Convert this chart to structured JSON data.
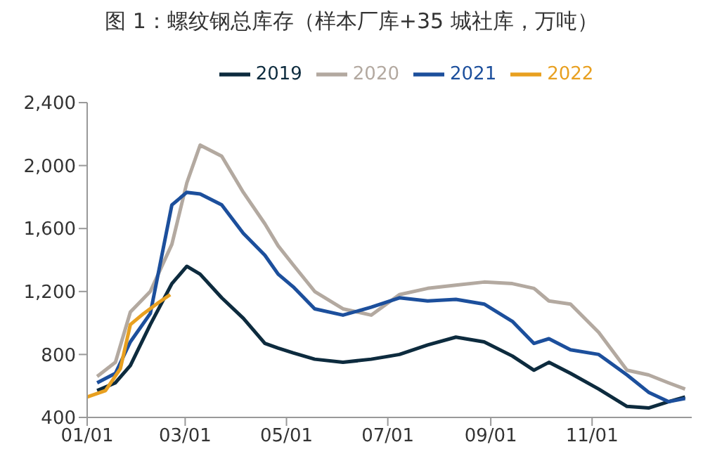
{
  "chart_data": {
    "type": "line",
    "title": "图 1：螺纹钢总库存（样本厂库+35 城社库，万吨）",
    "x": [
      "--01-07",
      "--01-18",
      "--01-27",
      "--02-08",
      "--02-21",
      "--03-02",
      "--03-10",
      "--03-23",
      "--04-05",
      "--04-18",
      "--04-26",
      "--05-05",
      "--05-18",
      "--06-04",
      "--06-21",
      "--07-08",
      "--07-25",
      "--08-11",
      "--08-28",
      "--09-14",
      "--09-27",
      "--10-06",
      "--10-19",
      "--11-05",
      "--11-22",
      "--12-05",
      "--12-17",
      "--12-27"
    ],
    "series": [
      {
        "name": "2019",
        "color": "#0d2b3e",
        "values": [
          570,
          620,
          730,
          990,
          1250,
          1360,
          1310,
          1160,
          1030,
          870,
          840,
          810,
          770,
          750,
          770,
          800,
          860,
          910,
          880,
          790,
          700,
          750,
          680,
          580,
          470,
          460,
          500,
          530
        ]
      },
      {
        "name": "2020",
        "color": "#b3a9a0",
        "values": [
          660,
          750,
          1070,
          1200,
          1500,
          1890,
          2130,
          2060,
          1830,
          1630,
          1490,
          1370,
          1200,
          1090,
          1050,
          1180,
          1220,
          1240,
          1260,
          1250,
          1220,
          1140,
          1120,
          940,
          700,
          670,
          620,
          580
        ]
      },
      {
        "name": "2021",
        "color": "#1c4f9c",
        "values": [
          620,
          680,
          880,
          1060,
          1750,
          1830,
          1820,
          1750,
          1570,
          1430,
          1310,
          1230,
          1090,
          1050,
          1100,
          1160,
          1140,
          1150,
          1120,
          1010,
          870,
          900,
          830,
          800,
          670,
          560,
          500,
          520
        ]
      },
      {
        "name": "2022",
        "color": "#e8a020",
        "x": [
          "--01-01",
          "--01-12",
          "--01-21",
          "--01-27",
          "--02-04",
          "--02-13",
          "--02-20"
        ],
        "values": [
          530,
          570,
          710,
          990,
          1060,
          1130,
          1180
        ]
      }
    ],
    "xlim": [
      "--01-01",
      "--12-31"
    ],
    "xticks": [
      {
        "value": "--01-01",
        "label": "01/01"
      },
      {
        "value": "--03-01",
        "label": "03/01"
      },
      {
        "value": "--05-01",
        "label": "05/01"
      },
      {
        "value": "--07-01",
        "label": "07/01"
      },
      {
        "value": "--09-01",
        "label": "09/01"
      },
      {
        "value": "--11-01",
        "label": "11/01"
      }
    ],
    "ylim": [
      400,
      2400
    ],
    "yticks": [
      {
        "value": 400,
        "label": "400"
      },
      {
        "value": 800,
        "label": "800"
      },
      {
        "value": 1200,
        "label": "1,200"
      },
      {
        "value": 1600,
        "label": "1,600"
      },
      {
        "value": 2000,
        "label": "2,000"
      },
      {
        "value": 2400,
        "label": "2,400"
      }
    ],
    "grid": false,
    "legend": "top",
    "marker": "none",
    "line_style": "solid"
  }
}
